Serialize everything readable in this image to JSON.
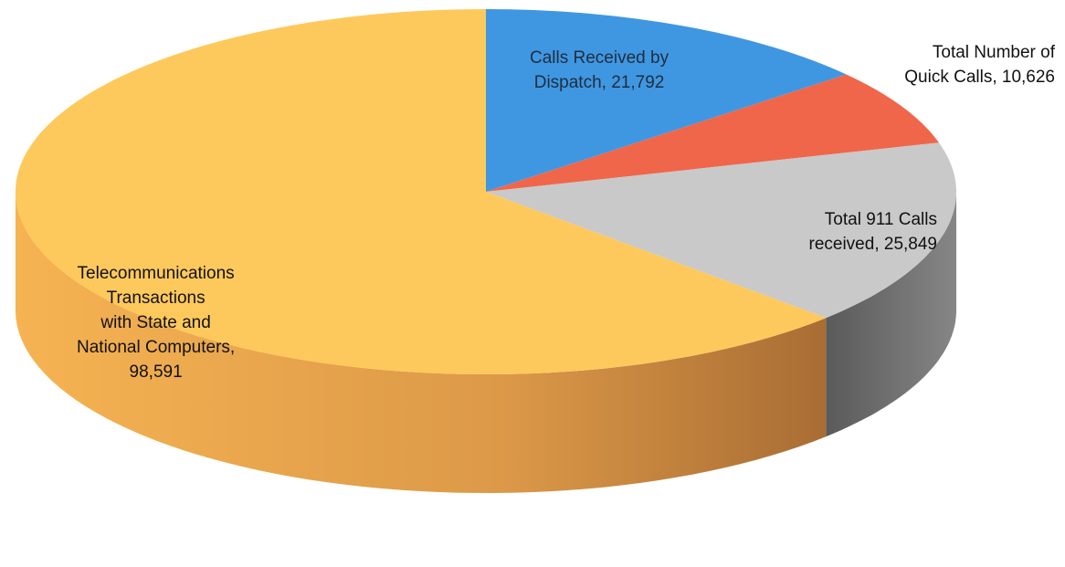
{
  "chart_data": {
    "type": "pie",
    "style": "3d",
    "title": "",
    "slices": [
      {
        "label": "Calls Received by Dispatch",
        "value": 21792,
        "value_text": "21,792",
        "color": "#3f97e2"
      },
      {
        "label": "Total Number of Quick Calls",
        "value": 10626,
        "value_text": "10,626",
        "color": "#f0664a"
      },
      {
        "label": "Total 911 Calls received",
        "value": 25849,
        "value_text": "25,849",
        "color": "#c9c9c9"
      },
      {
        "label": "Telecommunications Transactions with State and National Computers",
        "value": 98591,
        "value_text": "98,591",
        "color": "#fec95c"
      }
    ],
    "data_labels": [
      "Calls Received by\nDispatch, 21,792",
      "Total Number of\nQuick Calls, 10,626",
      "Total 911 Calls\nreceived, 25,849",
      "Telecommunications\nTransactions\n   with State and\nNational Computers,\n98,591"
    ],
    "legend": "none"
  }
}
